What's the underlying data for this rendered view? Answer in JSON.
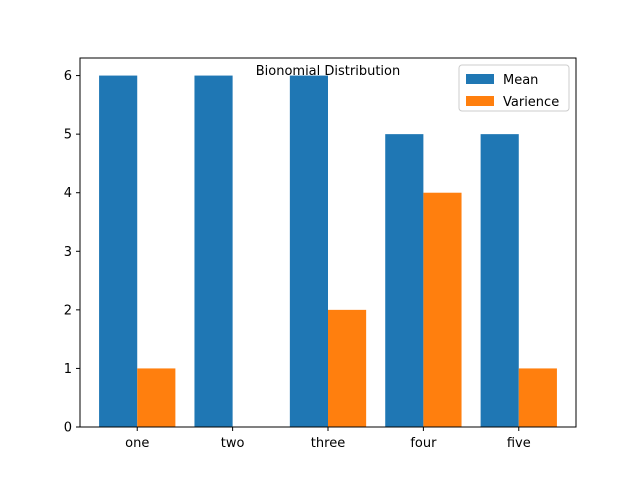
{
  "chart_data": {
    "type": "bar",
    "title": "Bionomial Distribution",
    "categories": [
      "one",
      "two",
      "three",
      "four",
      "five"
    ],
    "series": [
      {
        "name": "Mean",
        "values": [
          6,
          6,
          6,
          5,
          5
        ],
        "color": "#1f77b4"
      },
      {
        "name": "Varience",
        "values": [
          1,
          0,
          2,
          4,
          1
        ],
        "color": "#ff7f0e"
      }
    ],
    "ylim": [
      0,
      6.3
    ],
    "yticks": [
      0,
      1,
      2,
      3,
      4,
      5,
      6
    ],
    "xlabel": "",
    "ylabel": "",
    "legend": "top-right",
    "grid": false
  }
}
